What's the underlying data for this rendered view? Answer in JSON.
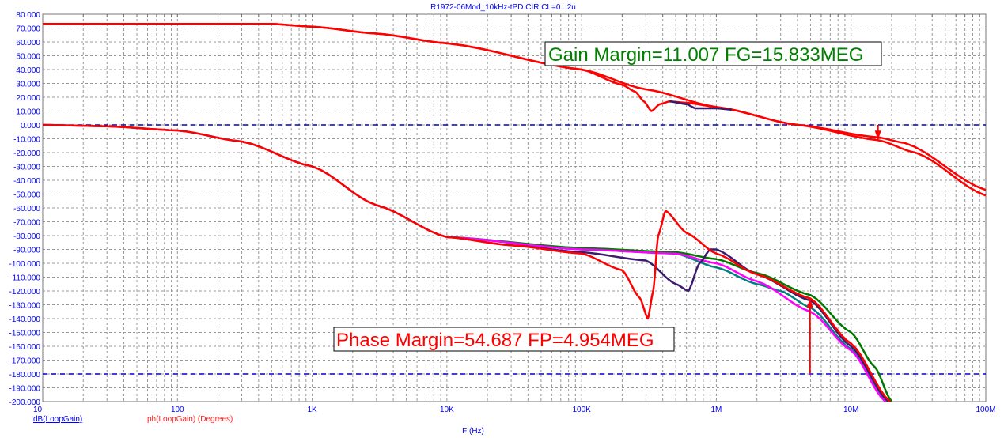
{
  "chart_data": {
    "type": "line",
    "title": "R1972-06Mod_10kHz-tPD.CIR CL=0...2u",
    "xlabel": "F (Hz)",
    "xscale": "log",
    "xlim": [
      10,
      100000000
    ],
    "ylim": [
      -200,
      80
    ],
    "grid": true,
    "x_tick_labels": [
      "10",
      "100",
      "1K",
      "10K",
      "100K",
      "1M",
      "10M",
      "100M"
    ],
    "y_tick_labels": [
      "80.000",
      "70.000",
      "60.000",
      "50.000",
      "40.000",
      "30.000",
      "20.000",
      "10.000",
      "0.000",
      "-10.000",
      "-20.000",
      "-30.000",
      "-40.000",
      "-50.000",
      "-60.000",
      "-70.000",
      "-80.000",
      "-90.000",
      "-100.000",
      "-110.000",
      "-120.000",
      "-130.000",
      "-140.000",
      "-150.000",
      "-160.000",
      "-170.000",
      "-180.000",
      "-190.000",
      "-200.000"
    ],
    "legend": [
      {
        "label": "dB(LoopGain)",
        "color": "#0000ff"
      },
      {
        "label": "ph(LoopGain) (Degrees)",
        "color": "#ff0000"
      }
    ],
    "reference_lines": [
      0,
      -180
    ],
    "annotations": [
      {
        "text": "Gain Margin=11.007 FG=15.833MEG",
        "color": "#008000"
      },
      {
        "text": "Phase Margin=54.687 FP=4.954MEG",
        "color": "#ff0000"
      }
    ],
    "markers": [
      {
        "name": "gain-margin-marker",
        "freq": 15833000,
        "from": 0,
        "to": -11.007
      },
      {
        "name": "phase-margin-marker",
        "freq": 4954000,
        "from": -180,
        "to": -125.313
      }
    ],
    "series": [
      {
        "name": "gain-red-a",
        "color": "#ff0000",
        "points": [
          [
            10,
            73
          ],
          [
            500,
            73
          ],
          [
            1000,
            71
          ],
          [
            3000,
            66
          ],
          [
            10000,
            59
          ],
          [
            100000,
            40
          ],
          [
            300000,
            25.7
          ],
          [
            1000000,
            13
          ],
          [
            4000000,
            0
          ],
          [
            15800000,
            -11
          ],
          [
            30000000,
            -20
          ],
          [
            100000000,
            -51
          ]
        ]
      },
      {
        "name": "gain-red-b",
        "color": "#ff0000",
        "points": [
          [
            10,
            73
          ],
          [
            500,
            73
          ],
          [
            1000,
            71
          ],
          [
            3000,
            66
          ],
          [
            10000,
            59
          ],
          [
            100000,
            40
          ],
          [
            200000,
            29
          ],
          [
            250000,
            24
          ],
          [
            290000,
            17
          ],
          [
            330000,
            10
          ],
          [
            380000,
            15
          ],
          [
            450000,
            17
          ],
          [
            600000,
            16
          ],
          [
            1000000,
            13
          ],
          [
            4000000,
            0
          ],
          [
            15800000,
            -9
          ],
          [
            25000000,
            -13
          ],
          [
            100000000,
            -47
          ]
        ]
      },
      {
        "name": "gain-purple",
        "color": "#3c1a6e",
        "points": [
          [
            450000,
            17
          ],
          [
            600000,
            15
          ],
          [
            700000,
            12
          ],
          [
            1000000,
            12
          ],
          [
            1300000,
            11
          ]
        ]
      },
      {
        "name": "phase-green",
        "color": "#007800",
        "points": [
          [
            10000,
            -81
          ],
          [
            100000,
            -89
          ],
          [
            500000,
            -92
          ],
          [
            1000000,
            -97
          ],
          [
            2000000,
            -107
          ],
          [
            5000000,
            -123
          ],
          [
            10000000,
            -150
          ],
          [
            15000000,
            -175
          ],
          [
            20000000,
            -200
          ]
        ]
      },
      {
        "name": "phase-teal",
        "color": "#008080",
        "points": [
          [
            10000,
            -81
          ],
          [
            100000,
            -90
          ],
          [
            500000,
            -93
          ],
          [
            1000000,
            -103
          ],
          [
            2000000,
            -115
          ],
          [
            3000000,
            -120
          ],
          [
            5000000,
            -132
          ],
          [
            10000000,
            -162
          ],
          [
            18500000,
            -200
          ]
        ]
      },
      {
        "name": "phase-magenta",
        "color": "#ff00ff",
        "points": [
          [
            10000,
            -81
          ],
          [
            100000,
            -90
          ],
          [
            500000,
            -93
          ],
          [
            1000000,
            -100
          ],
          [
            2000000,
            -113
          ],
          [
            5000000,
            -135
          ],
          [
            10000000,
            -163
          ],
          [
            18000000,
            -200
          ]
        ]
      },
      {
        "name": "phase-purple",
        "color": "#3c1a6e",
        "points": [
          [
            10,
            0
          ],
          [
            30,
            -1
          ],
          [
            100,
            -4
          ],
          [
            300,
            -12
          ],
          [
            1000,
            -30
          ],
          [
            3000,
            -58
          ],
          [
            10000,
            -81
          ],
          [
            30000,
            -87
          ],
          [
            100000,
            -92
          ],
          [
            300000,
            -98
          ],
          [
            500000,
            -115
          ],
          [
            620000,
            -120
          ],
          [
            750000,
            -100
          ],
          [
            900000,
            -90
          ],
          [
            1000000,
            -90
          ],
          [
            2000000,
            -108
          ],
          [
            5000000,
            -127
          ],
          [
            10000000,
            -160
          ],
          [
            19000000,
            -200
          ]
        ]
      },
      {
        "name": "phase-red",
        "color": "#ff0000",
        "points": [
          [
            10,
            0
          ],
          [
            30,
            -1
          ],
          [
            100,
            -4
          ],
          [
            300,
            -12
          ],
          [
            1000,
            -30
          ],
          [
            3000,
            -58
          ],
          [
            10000,
            -81
          ],
          [
            30000,
            -87
          ],
          [
            100000,
            -93
          ],
          [
            200000,
            -105
          ],
          [
            270000,
            -125
          ],
          [
            310000,
            -140
          ],
          [
            340000,
            -120
          ],
          [
            370000,
            -80
          ],
          [
            420000,
            -62
          ],
          [
            600000,
            -78
          ],
          [
            1000000,
            -93
          ],
          [
            2000000,
            -108
          ],
          [
            4954000,
            -125.3
          ],
          [
            10000000,
            -158
          ],
          [
            19500000,
            -200
          ]
        ]
      }
    ]
  }
}
